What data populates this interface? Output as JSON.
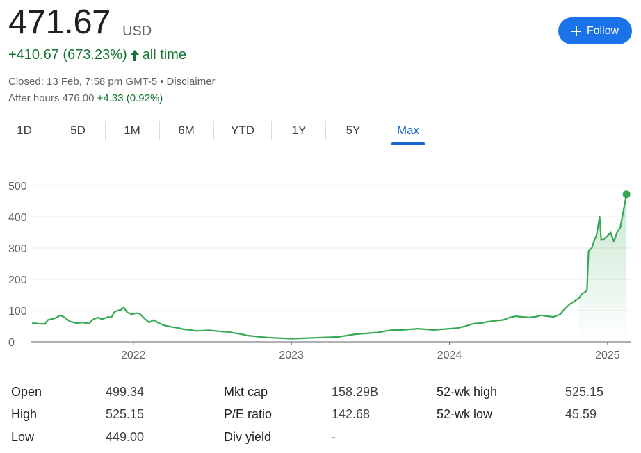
{
  "quote": {
    "price": "471.67",
    "currency": "USD",
    "change": "+410.67 (673.23%)",
    "change_period": "all time",
    "closed_text": "Closed: 13 Feb, 7:58 pm GMT-5",
    "separator": "•",
    "disclaimer": "Disclaimer",
    "after_hours_label": "After hours 476.00",
    "after_hours_change": "+4.33 (0.92%)"
  },
  "follow_button": {
    "label": "Follow"
  },
  "tabs": [
    {
      "label": "1D"
    },
    {
      "label": "5D"
    },
    {
      "label": "1M"
    },
    {
      "label": "6M"
    },
    {
      "label": "YTD"
    },
    {
      "label": "1Y"
    },
    {
      "label": "5Y"
    },
    {
      "label": "Max",
      "active": true
    }
  ],
  "colors": {
    "line": "#34a853",
    "positive_text": "#137333",
    "accent": "#1a73e8",
    "grid": "#ebebeb"
  },
  "chart_data": {
    "type": "area",
    "x_unit": "year",
    "xlim": [
      2021.35,
      2025.15
    ],
    "ylim": [
      0,
      500
    ],
    "yticks": [
      0,
      100,
      200,
      300,
      400,
      500
    ],
    "xticks": [
      2022,
      2023,
      2024,
      2025
    ],
    "xtick_labels": [
      "2022",
      "2023",
      "2024",
      "2025"
    ],
    "grid": true,
    "last_point_marker": true,
    "series": [
      {
        "x": [
          2021.36,
          2021.4,
          2021.44,
          2021.46,
          2021.5,
          2021.54,
          2021.56,
          2021.6,
          2021.64,
          2021.68,
          2021.72,
          2021.74,
          2021.76,
          2021.78,
          2021.8,
          2021.84,
          2021.86,
          2021.88,
          2021.9,
          2021.92,
          2021.94,
          2021.96,
          2021.99,
          2022.02,
          2022.04,
          2022.07,
          2022.1,
          2022.13,
          2022.16,
          2022.2,
          2022.24,
          2022.28,
          2022.32,
          2022.36,
          2022.4,
          2022.44,
          2022.48,
          2022.52,
          2022.56,
          2022.6,
          2022.64,
          2022.68,
          2022.72,
          2022.76,
          2022.8,
          2022.84,
          2022.88,
          2022.92,
          2022.96,
          2023.0,
          2023.05,
          2023.1,
          2023.15,
          2023.2,
          2023.25,
          2023.3,
          2023.35,
          2023.4,
          2023.45,
          2023.5,
          2023.55,
          2023.6,
          2023.65,
          2023.7,
          2023.75,
          2023.8,
          2023.85,
          2023.9,
          2023.95,
          2024.0,
          2024.05,
          2024.1,
          2024.15,
          2024.2,
          2024.25,
          2024.3,
          2024.34,
          2024.38,
          2024.42,
          2024.46,
          2024.5,
          2024.54,
          2024.58,
          2024.62,
          2024.66,
          2024.7,
          2024.72,
          2024.74,
          2024.76,
          2024.79,
          2024.82,
          2024.84,
          2024.86,
          2024.87,
          2024.88,
          2024.9,
          2024.92,
          2024.93,
          2024.95,
          2024.96,
          2024.98,
          2025.0,
          2025.02,
          2025.04,
          2025.06,
          2025.08,
          2025.12
        ],
        "y": [
          60,
          58,
          57,
          70,
          75,
          85,
          80,
          65,
          60,
          62,
          58,
          70,
          75,
          78,
          72,
          80,
          78,
          95,
          100,
          102,
          110,
          95,
          88,
          92,
          90,
          75,
          62,
          70,
          60,
          52,
          48,
          45,
          40,
          38,
          35,
          36,
          37,
          35,
          33,
          32,
          28,
          25,
          20,
          18,
          16,
          14,
          13,
          12,
          11,
          10,
          11,
          12,
          13,
          14,
          15,
          16,
          20,
          24,
          26,
          28,
          30,
          35,
          38,
          38,
          40,
          42,
          40,
          38,
          40,
          42,
          44,
          50,
          58,
          60,
          65,
          68,
          70,
          78,
          82,
          80,
          78,
          80,
          85,
          82,
          80,
          88,
          100,
          110,
          120,
          130,
          140,
          155,
          160,
          165,
          290,
          300,
          330,
          340,
          400,
          325,
          330,
          340,
          350,
          320,
          350,
          365,
          471.67
        ]
      }
    ]
  },
  "stats": {
    "col1": [
      {
        "label": "Open",
        "value": "499.34"
      },
      {
        "label": "High",
        "value": "525.15"
      },
      {
        "label": "Low",
        "value": "449.00"
      }
    ],
    "col2": [
      {
        "label": "Mkt cap",
        "value": "158.29B"
      },
      {
        "label": "P/E ratio",
        "value": "142.68"
      },
      {
        "label": "Div yield",
        "value": "-"
      }
    ],
    "col3": [
      {
        "label": "52-wk high",
        "value": "525.15"
      },
      {
        "label": "52-wk low",
        "value": "45.59"
      }
    ]
  }
}
